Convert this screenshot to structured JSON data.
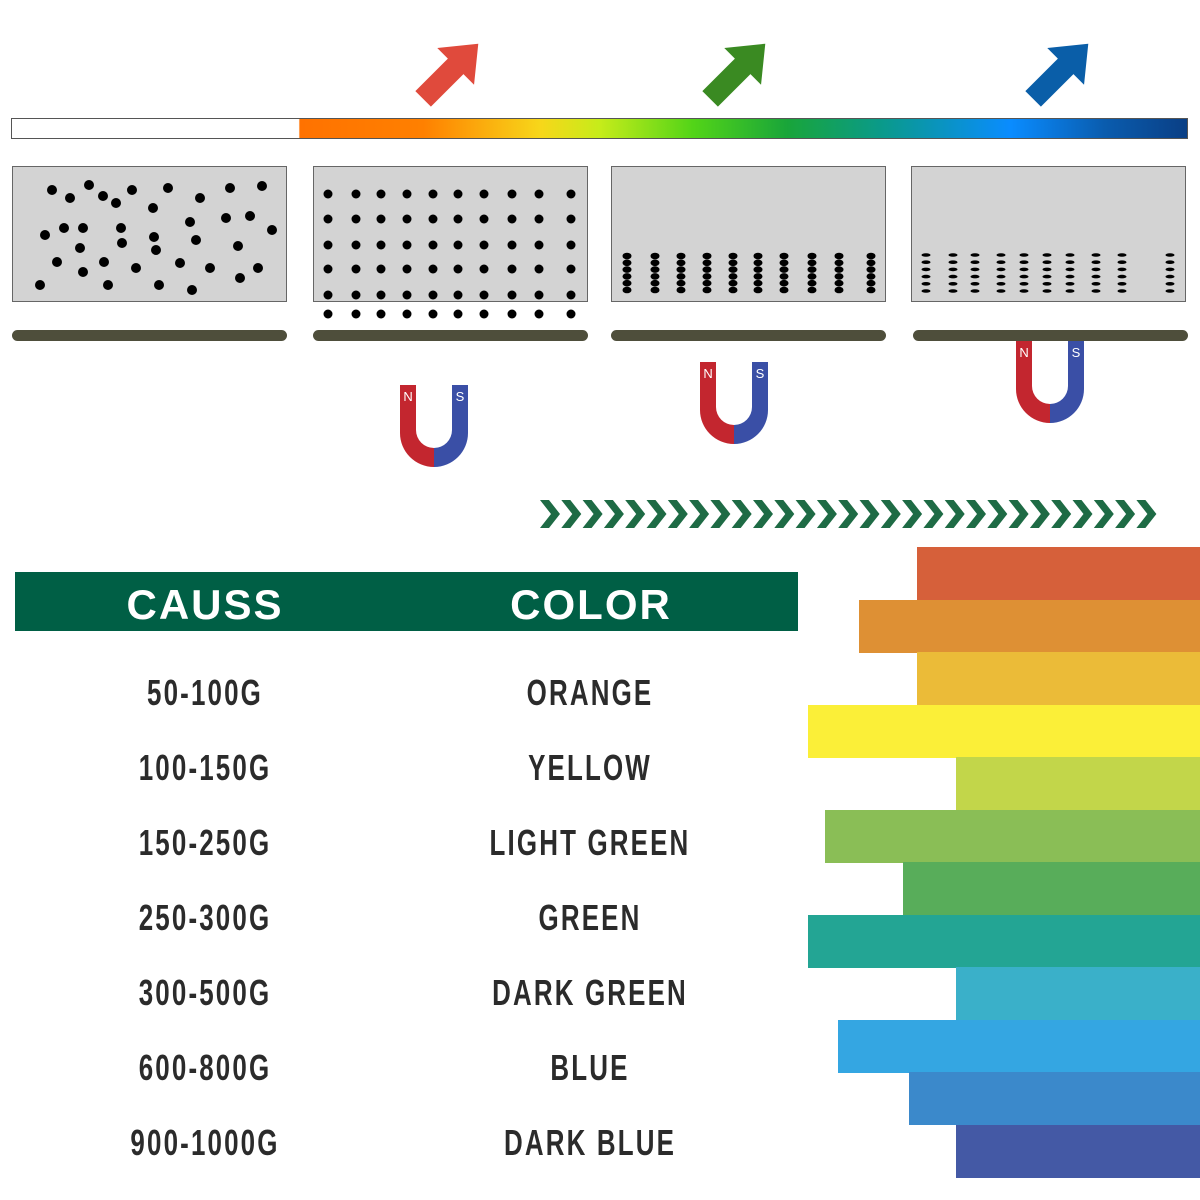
{
  "table": {
    "headers": [
      "CAUSS",
      "COLOR"
    ],
    "rows": [
      {
        "gauss": "50-100G",
        "color": "ORANGE"
      },
      {
        "gauss": "100-150G",
        "color": "YELLOW"
      },
      {
        "gauss": "150-250G",
        "color": "LIGHT GREEN"
      },
      {
        "gauss": "250-300G",
        "color": "GREEN"
      },
      {
        "gauss": "300-500G",
        "color": "DARK GREEN"
      },
      {
        "gauss": "600-800G",
        "color": "BLUE"
      },
      {
        "gauss": "900-1000G",
        "color": "DARK BLUE"
      }
    ]
  },
  "magnet": {
    "north": "N",
    "south": "S"
  },
  "colors": {
    "header": "#005f45",
    "chevrons": "#1e6b45",
    "arrows": [
      "#e04a3c",
      "#3a8a22",
      "#0a5ea8"
    ],
    "stripes": [
      "#d6603a",
      "#de9034",
      "#ebbb38",
      "#fbef38",
      "#c2d64a",
      "#8abe56",
      "#58ad5a",
      "#23a594",
      "#3ab0c9",
      "#34a6e2",
      "#3b89cb",
      "#4459a5"
    ]
  }
}
